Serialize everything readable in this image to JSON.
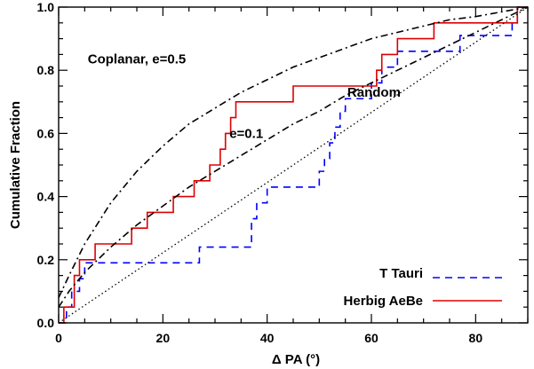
{
  "chart_data": {
    "type": "line",
    "title": "",
    "xlabel": "Δ PA (°)",
    "ylabel": "Cumulative Fraction",
    "xlim": [
      0,
      90
    ],
    "ylim": [
      0,
      1
    ],
    "x_ticks": [
      0,
      20,
      40,
      60,
      80
    ],
    "y_ticks": [
      0.0,
      0.2,
      0.4,
      0.6,
      0.8,
      1.0
    ],
    "x_tick_labels": [
      "0",
      "20",
      "40",
      "60",
      "80"
    ],
    "y_tick_labels": [
      "0.0",
      "0.2",
      "0.4",
      "0.6",
      "0.8",
      "1.0"
    ],
    "grid": false,
    "legend_position": "bottom-right",
    "annotations": [
      {
        "text": "Coplanar, e=0.5",
        "x": 15,
        "y": 0.835
      },
      {
        "text": "e=0.1",
        "x": 36,
        "y": 0.6
      },
      {
        "text": "Random",
        "x": 60.5,
        "y": 0.73
      }
    ],
    "series": [
      {
        "name": "T Tauri",
        "style": "dashed",
        "color": "#0000ff",
        "steps": [
          [
            0,
            0
          ],
          [
            1.5,
            0
          ],
          [
            1.5,
            0.05
          ],
          [
            2.5,
            0.05
          ],
          [
            2.5,
            0.1
          ],
          [
            4,
            0.1
          ],
          [
            4,
            0.14
          ],
          [
            5,
            0.14
          ],
          [
            5,
            0.19
          ],
          [
            27,
            0.19
          ],
          [
            27,
            0.24
          ],
          [
            37,
            0.24
          ],
          [
            37,
            0.33
          ],
          [
            38,
            0.33
          ],
          [
            38,
            0.38
          ],
          [
            40,
            0.38
          ],
          [
            40,
            0.43
          ],
          [
            50,
            0.43
          ],
          [
            50,
            0.48
          ],
          [
            51,
            0.48
          ],
          [
            51,
            0.52
          ],
          [
            52,
            0.52
          ],
          [
            52,
            0.57
          ],
          [
            53,
            0.57
          ],
          [
            53,
            0.62
          ],
          [
            54,
            0.62
          ],
          [
            54,
            0.67
          ],
          [
            55,
            0.67
          ],
          [
            55,
            0.71
          ],
          [
            60,
            0.71
          ],
          [
            60,
            0.76
          ],
          [
            62,
            0.76
          ],
          [
            62,
            0.81
          ],
          [
            65,
            0.81
          ],
          [
            65,
            0.86
          ],
          [
            77,
            0.86
          ],
          [
            77,
            0.91
          ],
          [
            87,
            0.91
          ],
          [
            87,
            0.95
          ],
          [
            88,
            0.95
          ],
          [
            88,
            1.0
          ],
          [
            90,
            1.0
          ]
        ]
      },
      {
        "name": "Herbig AeBe",
        "style": "solid",
        "color": "#dd0000",
        "steps": [
          [
            0,
            0
          ],
          [
            1,
            0
          ],
          [
            1,
            0.05
          ],
          [
            3,
            0.05
          ],
          [
            3,
            0.15
          ],
          [
            4,
            0.15
          ],
          [
            4,
            0.2
          ],
          [
            7,
            0.2
          ],
          [
            7,
            0.25
          ],
          [
            14,
            0.25
          ],
          [
            14,
            0.3
          ],
          [
            17,
            0.3
          ],
          [
            17,
            0.35
          ],
          [
            22,
            0.35
          ],
          [
            22,
            0.4
          ],
          [
            26,
            0.4
          ],
          [
            26,
            0.45
          ],
          [
            29,
            0.45
          ],
          [
            29,
            0.5
          ],
          [
            31,
            0.5
          ],
          [
            31,
            0.55
          ],
          [
            32,
            0.55
          ],
          [
            32,
            0.6
          ],
          [
            33,
            0.6
          ],
          [
            33,
            0.65
          ],
          [
            34,
            0.65
          ],
          [
            34,
            0.7
          ],
          [
            45,
            0.7
          ],
          [
            45,
            0.75
          ],
          [
            61,
            0.75
          ],
          [
            61,
            0.8
          ],
          [
            62,
            0.8
          ],
          [
            62,
            0.85
          ],
          [
            65,
            0.85
          ],
          [
            65,
            0.9
          ],
          [
            72,
            0.9
          ],
          [
            72,
            0.95
          ],
          [
            88,
            0.95
          ],
          [
            88,
            1.0
          ],
          [
            90,
            1.0
          ]
        ]
      },
      {
        "name": "",
        "style": "dotted",
        "color": "#000000",
        "x": [
          0,
          90
        ],
        "y": [
          0,
          1
        ]
      },
      {
        "name": "",
        "style": "dash-dot",
        "color": "#000000",
        "x": [
          0,
          2,
          5,
          10,
          15,
          20,
          25,
          30,
          35,
          40,
          45,
          50,
          55,
          60,
          65,
          70,
          75,
          80,
          85,
          90
        ],
        "y": [
          0.05,
          0.1,
          0.16,
          0.24,
          0.31,
          0.37,
          0.43,
          0.48,
          0.53,
          0.58,
          0.63,
          0.67,
          0.72,
          0.76,
          0.8,
          0.84,
          0.88,
          0.92,
          0.96,
          1.0
        ]
      },
      {
        "name": "",
        "style": "dash-dot",
        "color": "#000000",
        "x": [
          0,
          2,
          5,
          10,
          15,
          20,
          25,
          30,
          35,
          40,
          45,
          50,
          55,
          60,
          65,
          70,
          75,
          80,
          85,
          90
        ],
        "y": [
          0.08,
          0.15,
          0.25,
          0.38,
          0.48,
          0.56,
          0.63,
          0.68,
          0.73,
          0.77,
          0.81,
          0.84,
          0.87,
          0.9,
          0.92,
          0.94,
          0.96,
          0.97,
          0.985,
          1.0
        ]
      }
    ]
  }
}
